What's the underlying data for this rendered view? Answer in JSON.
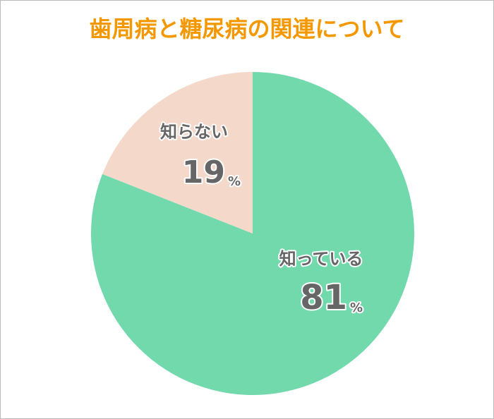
{
  "chart_data": {
    "type": "pie",
    "title": "歯周病と糖尿病の関連について",
    "categories": [
      "知っている",
      "知らない"
    ],
    "values": [
      81,
      19
    ],
    "value_unit": "%",
    "colors": [
      "#72d9ad",
      "#f4d9cb"
    ],
    "start_angle": 0,
    "direction": "clockwise"
  }
}
